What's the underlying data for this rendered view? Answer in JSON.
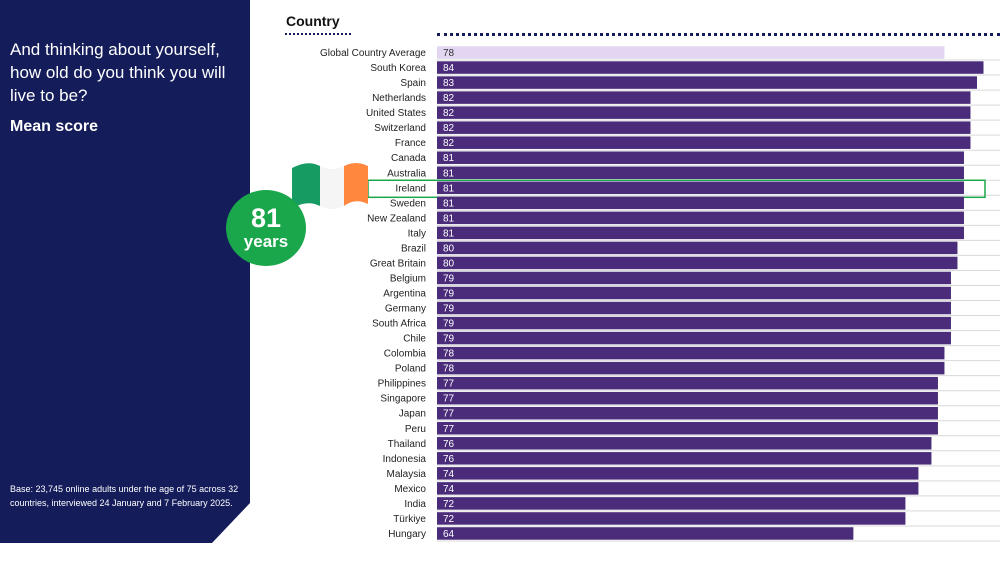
{
  "panel": {
    "question": "And thinking about yourself, how old do you think you will live to be?",
    "subtitle": "Mean score",
    "base_note": "Base: 23,745 online adults under the age of 75 across 32 countries, interviewed 24 January and 7 February 2025.",
    "background_color": "#141c5a"
  },
  "highlight": {
    "country": "Ireland",
    "value": "81",
    "unit": "years",
    "badge_color": "#1aa64a",
    "outline_color": "#1aa64a",
    "flag_icon": "ireland-flag-icon"
  },
  "chart_data": {
    "type": "bar",
    "orientation": "horizontal",
    "column_header": "Country",
    "categories": [
      "Global Country Average",
      "South Korea",
      "Spain",
      "Netherlands",
      "United States",
      "Switzerland",
      "France",
      "Canada",
      "Australia",
      "Ireland",
      "Sweden",
      "New Zealand",
      "Italy",
      "Brazil",
      "Great Britain",
      "Belgium",
      "Argentina",
      "Germany",
      "South Africa",
      "Chile",
      "Colombia",
      "Poland",
      "Philippines",
      "Singapore",
      "Japan",
      "Peru",
      "Thailand",
      "Indonesia",
      "Malaysia",
      "Mexico",
      "India",
      "Türkiye",
      "Hungary"
    ],
    "values": [
      78,
      84,
      83,
      82,
      82,
      82,
      82,
      81,
      81,
      81,
      81,
      81,
      81,
      80,
      80,
      79,
      79,
      79,
      79,
      79,
      78,
      78,
      77,
      77,
      77,
      77,
      76,
      76,
      74,
      74,
      72,
      72,
      64
    ],
    "bar_color": "#4a2c7a",
    "average_bar_color": "#e3d6f2",
    "label_color_dark_bar": "#ffffff",
    "label_color_light_bar": "#333333",
    "xlim": [
      0,
      85
    ]
  }
}
